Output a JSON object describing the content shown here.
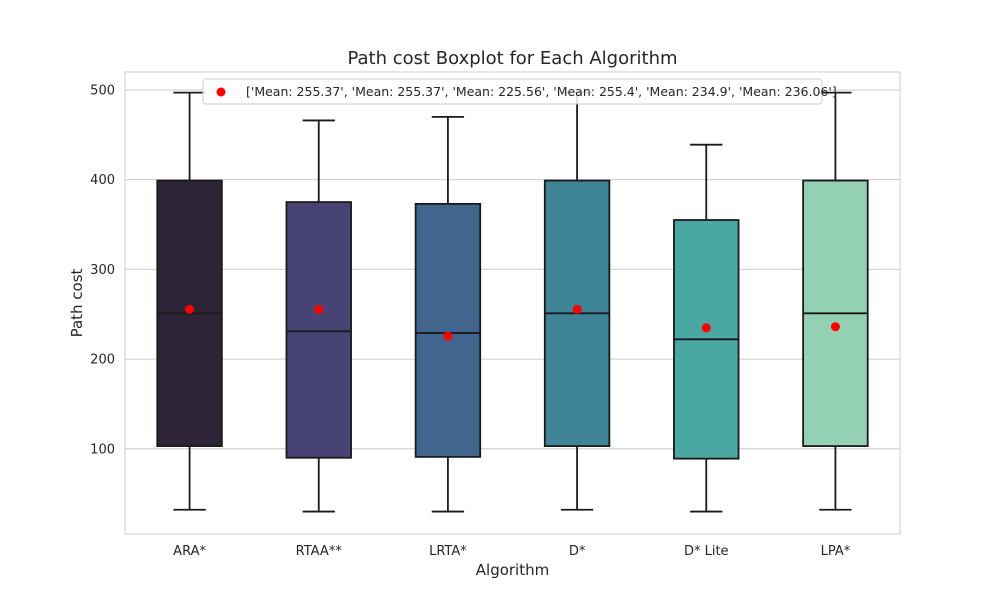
{
  "chart_data": {
    "type": "box",
    "title": "Path cost Boxplot for Each Algorithm",
    "xlabel": "Algorithm",
    "ylabel": "Path cost",
    "ylim": [
      5,
      520
    ],
    "yticks": [
      100,
      200,
      300,
      400,
      500
    ],
    "grid": true,
    "legend_position": "top-center",
    "legend_label": "['Mean: 255.37', 'Mean: 255.37', 'Mean: 225.56', 'Mean: 255.4', 'Mean: 234.9', 'Mean: 236.06']",
    "mean_marker_color": "#ff0000",
    "categories": [
      "ARA*",
      "RTAA**",
      "LRTA*",
      "D*",
      "D* Lite",
      "LPA*"
    ],
    "boxes": [
      {
        "whisker_low": 32,
        "q1": 103,
        "median": 251,
        "q3": 399,
        "whisker_high": 497,
        "mean": 255.37,
        "color": "#2e2437"
      },
      {
        "whisker_low": 30,
        "q1": 90,
        "median": 231,
        "q3": 375,
        "whisker_high": 466,
        "mean": 255.37,
        "color": "#474373"
      },
      {
        "whisker_low": 30,
        "q1": 91,
        "median": 229,
        "q3": 373,
        "whisker_high": 470,
        "mean": 225.56,
        "color": "#41658d"
      },
      {
        "whisker_low": 32,
        "q1": 103,
        "median": 251,
        "q3": 399,
        "whisker_high": 497,
        "mean": 255.4,
        "color": "#3f8597"
      },
      {
        "whisker_low": 30,
        "q1": 89,
        "median": 222,
        "q3": 355,
        "whisker_high": 439,
        "mean": 234.9,
        "color": "#4ba7a2"
      },
      {
        "whisker_low": 32,
        "q1": 103,
        "median": 251,
        "q3": 399,
        "whisker_high": 497,
        "mean": 236.06,
        "color": "#94d0b3"
      }
    ]
  }
}
